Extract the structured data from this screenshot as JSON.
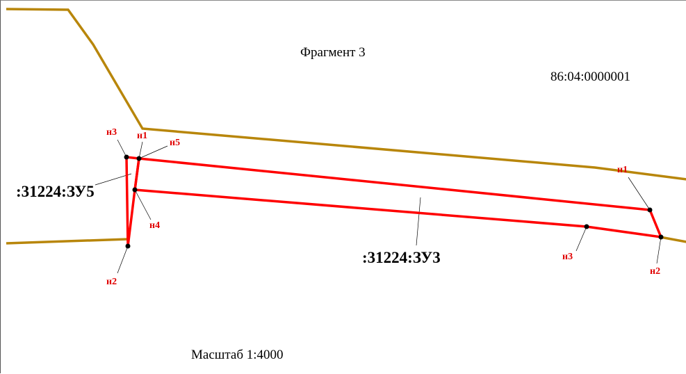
{
  "map": {
    "title": "Фрагмент 3",
    "quarter_number": "86:04:0000001",
    "scale_label": "Масштаб 1:4000",
    "colors": {
      "boundary": "#b8860b",
      "parcel": "#ff0000",
      "label_red": "#e00000",
      "point": "#000000",
      "leader": "#000000"
    }
  },
  "parcels": [
    {
      "label": ":31224:ЗУ5",
      "points": [
        "н1",
        "н2",
        "н3",
        "н4",
        "н5"
      ]
    },
    {
      "label": ":31224:ЗУ3",
      "points": [
        "н1",
        "н2",
        "н3"
      ]
    }
  ]
}
